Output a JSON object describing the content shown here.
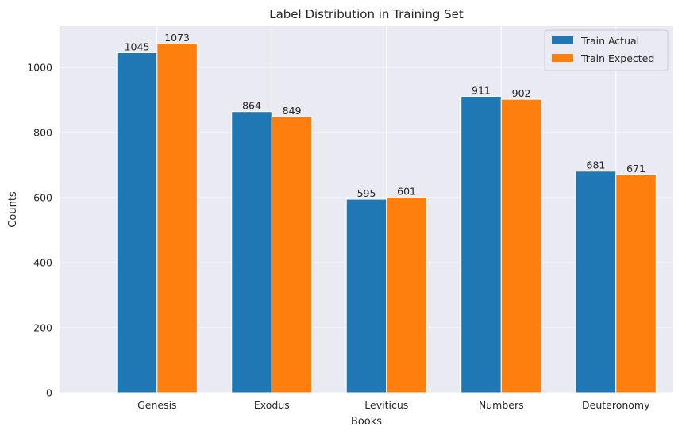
{
  "chart_data": {
    "type": "bar",
    "title": "Label Distribution in Training Set",
    "xlabel": "Books",
    "ylabel": "Counts",
    "categories": [
      "Genesis",
      "Exodus",
      "Leviticus",
      "Numbers",
      "Deuteronomy"
    ],
    "series": [
      {
        "name": "Train Actual",
        "color": "#1f77b4",
        "values": [
          1045,
          864,
          595,
          911,
          681
        ]
      },
      {
        "name": "Train Expected",
        "color": "#ff7f0e",
        "values": [
          1073,
          849,
          601,
          902,
          671
        ]
      }
    ],
    "ylim": [
      0,
      1126.65
    ],
    "yticks": [
      0,
      200,
      400,
      600,
      800,
      1000
    ],
    "grid": true,
    "legend_position": "top-right",
    "style": {
      "background": "#eaeaf2",
      "grid_color": "#ffffff"
    }
  }
}
